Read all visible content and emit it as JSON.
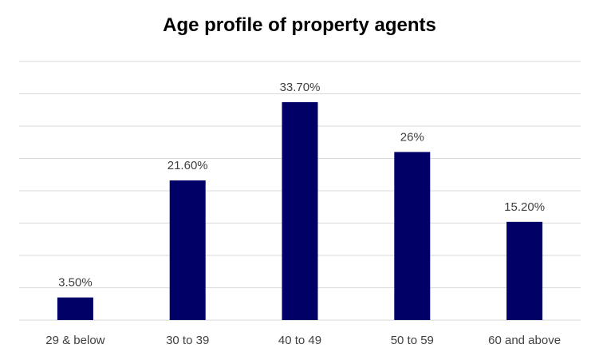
{
  "chart_data": {
    "type": "bar",
    "title": "Age profile of property agents",
    "categories": [
      "29 & below",
      "30 to 39",
      "40 to 49",
      "50 to 59",
      "60 and above"
    ],
    "values": [
      3.5,
      21.6,
      33.7,
      26,
      15.2
    ],
    "data_labels": [
      "3.50%",
      "21.60%",
      "33.70%",
      "26%",
      "15.20%"
    ],
    "xlabel": "",
    "ylabel": "",
    "ylim": [
      0,
      40
    ],
    "grid": true,
    "legend": "none",
    "bar_color": "#000066",
    "grid_color": "#d9d9d9"
  }
}
